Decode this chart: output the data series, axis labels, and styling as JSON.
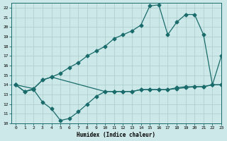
{
  "xlabel": "Humidex (Indice chaleur)",
  "xlim": [
    -0.5,
    23
  ],
  "ylim": [
    10,
    22.5
  ],
  "yticks": [
    10,
    11,
    12,
    13,
    14,
    15,
    16,
    17,
    18,
    19,
    20,
    21,
    22
  ],
  "xticks": [
    0,
    1,
    2,
    3,
    4,
    5,
    6,
    7,
    8,
    9,
    10,
    11,
    12,
    13,
    14,
    15,
    16,
    17,
    18,
    19,
    20,
    21,
    22,
    23
  ],
  "bg_color": "#cce8e8",
  "line_color": "#1a6b6b",
  "grid_color": "#b0d0d0",
  "series1_x": [
    0,
    1,
    2,
    3,
    4,
    5,
    6,
    7,
    8,
    9,
    10,
    11,
    12,
    13,
    14,
    15,
    16,
    17,
    18,
    19,
    20,
    21,
    22,
    23
  ],
  "series1_y": [
    14,
    13.3,
    13.6,
    14.5,
    14.8,
    15.2,
    15.8,
    16.3,
    17.0,
    17.5,
    18.0,
    18.8,
    19.2,
    19.6,
    20.2,
    22.2,
    22.3,
    19.2,
    20.5,
    21.3,
    21.3,
    19.2,
    14.0,
    17.0
  ],
  "series2_x": [
    0,
    2,
    3,
    4,
    10,
    11,
    12,
    13,
    14,
    15,
    16,
    17,
    18,
    19,
    20,
    21,
    22,
    23
  ],
  "series2_y": [
    14,
    13.6,
    14.5,
    14.8,
    13.3,
    13.3,
    13.3,
    13.3,
    13.5,
    13.5,
    13.5,
    13.5,
    13.6,
    13.7,
    13.8,
    13.8,
    14.0,
    14.0
  ],
  "series3_x": [
    0,
    1,
    2,
    3,
    4,
    5,
    6,
    7,
    8,
    9,
    10,
    11,
    12,
    13,
    14,
    15,
    16,
    17,
    18,
    19,
    20,
    21,
    22,
    23
  ],
  "series3_y": [
    14,
    13.3,
    13.5,
    12.2,
    11.5,
    10.3,
    10.5,
    11.2,
    12.0,
    12.8,
    13.3,
    13.3,
    13.3,
    13.3,
    13.5,
    13.5,
    13.5,
    13.5,
    13.7,
    13.8,
    13.8,
    13.8,
    14.0,
    14.0
  ]
}
